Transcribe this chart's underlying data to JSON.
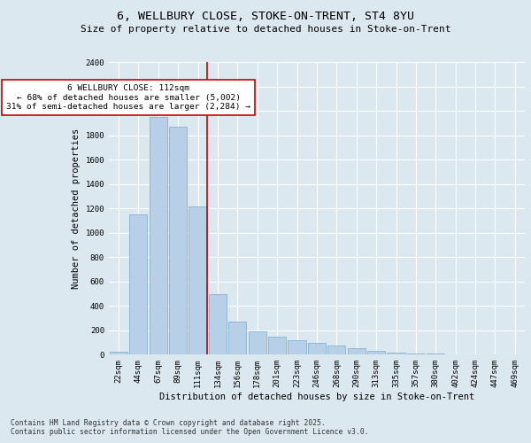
{
  "title": "6, WELLBURY CLOSE, STOKE-ON-TRENT, ST4 8YU",
  "subtitle": "Size of property relative to detached houses in Stoke-on-Trent",
  "xlabel": "Distribution of detached houses by size in Stoke-on-Trent",
  "ylabel": "Number of detached properties",
  "categories": [
    "22sqm",
    "44sqm",
    "67sqm",
    "89sqm",
    "111sqm",
    "134sqm",
    "156sqm",
    "178sqm",
    "201sqm",
    "223sqm",
    "246sqm",
    "268sqm",
    "290sqm",
    "313sqm",
    "335sqm",
    "357sqm",
    "380sqm",
    "402sqm",
    "424sqm",
    "447sqm",
    "469sqm"
  ],
  "values": [
    25,
    1150,
    1950,
    1870,
    1220,
    500,
    270,
    190,
    150,
    120,
    100,
    75,
    55,
    30,
    18,
    12,
    8,
    5,
    4,
    3,
    2
  ],
  "bar_color": "#b8cfe8",
  "bar_edge_color": "#7aaad0",
  "vline_x_index": 4,
  "vline_color": "#cc0000",
  "annotation_text": "6 WELLBURY CLOSE: 112sqm\n← 68% of detached houses are smaller (5,002)\n31% of semi-detached houses are larger (2,284) →",
  "annotation_box_color": "#ffffff",
  "annotation_box_edge": "#cc0000",
  "footnote1": "Contains HM Land Registry data © Crown copyright and database right 2025.",
  "footnote2": "Contains public sector information licensed under the Open Government Licence v3.0.",
  "bg_color": "#dce8f0",
  "plot_bg_color": "#dce8f0",
  "grid_color": "#ffffff",
  "ylim": [
    0,
    2400
  ],
  "title_fontsize": 9.5,
  "subtitle_fontsize": 8,
  "axis_label_fontsize": 7.5,
  "tick_fontsize": 6.5,
  "annotation_fontsize": 6.8,
  "footnote_fontsize": 5.8
}
